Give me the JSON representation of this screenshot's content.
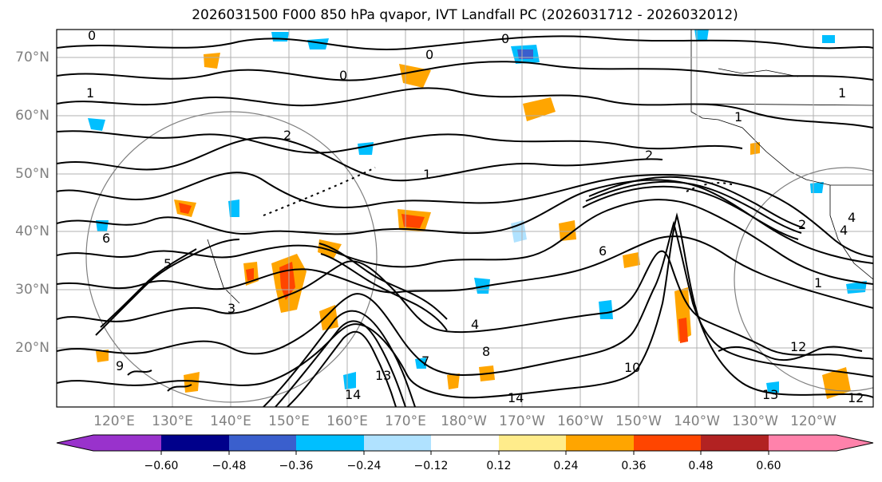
{
  "title": "2026031500 F000 850 hPa qvapor, IVT Landfall PC (2026031712 - 2026032012)",
  "map": {
    "lat_labels": [
      "70°N",
      "60°N",
      "50°N",
      "40°N",
      "30°N",
      "20°N"
    ],
    "lon_labels": [
      "120°E",
      "130°E",
      "140°E",
      "150°E",
      "160°E",
      "170°E",
      "180°W",
      "170°W",
      "160°W",
      "150°W",
      "140°W",
      "130°W",
      "120°W"
    ],
    "contour_labels": [
      "0",
      "0",
      "0",
      "0",
      "1",
      "1",
      "2",
      "2",
      "1",
      "2",
      "1",
      "1",
      "3",
      "4",
      "6",
      "8",
      "7",
      "14",
      "14",
      "13",
      "13",
      "12",
      "12",
      "9",
      "6",
      "5",
      "10",
      "4",
      "4"
    ]
  },
  "colorbar": {
    "colors": [
      "#9932cc",
      "#00008b",
      "#3a5fcd",
      "#00bfff",
      "#b0e2ff",
      "#ffffff",
      "#ffec8b",
      "#ffa500",
      "#ff4500",
      "#b22222",
      "#ff82ab"
    ],
    "tick_labels": [
      "−0.60",
      "−0.48",
      "−0.36",
      "−0.24",
      "−0.12",
      "0.12",
      "0.24",
      "0.36",
      "0.48",
      "0.60"
    ]
  }
}
